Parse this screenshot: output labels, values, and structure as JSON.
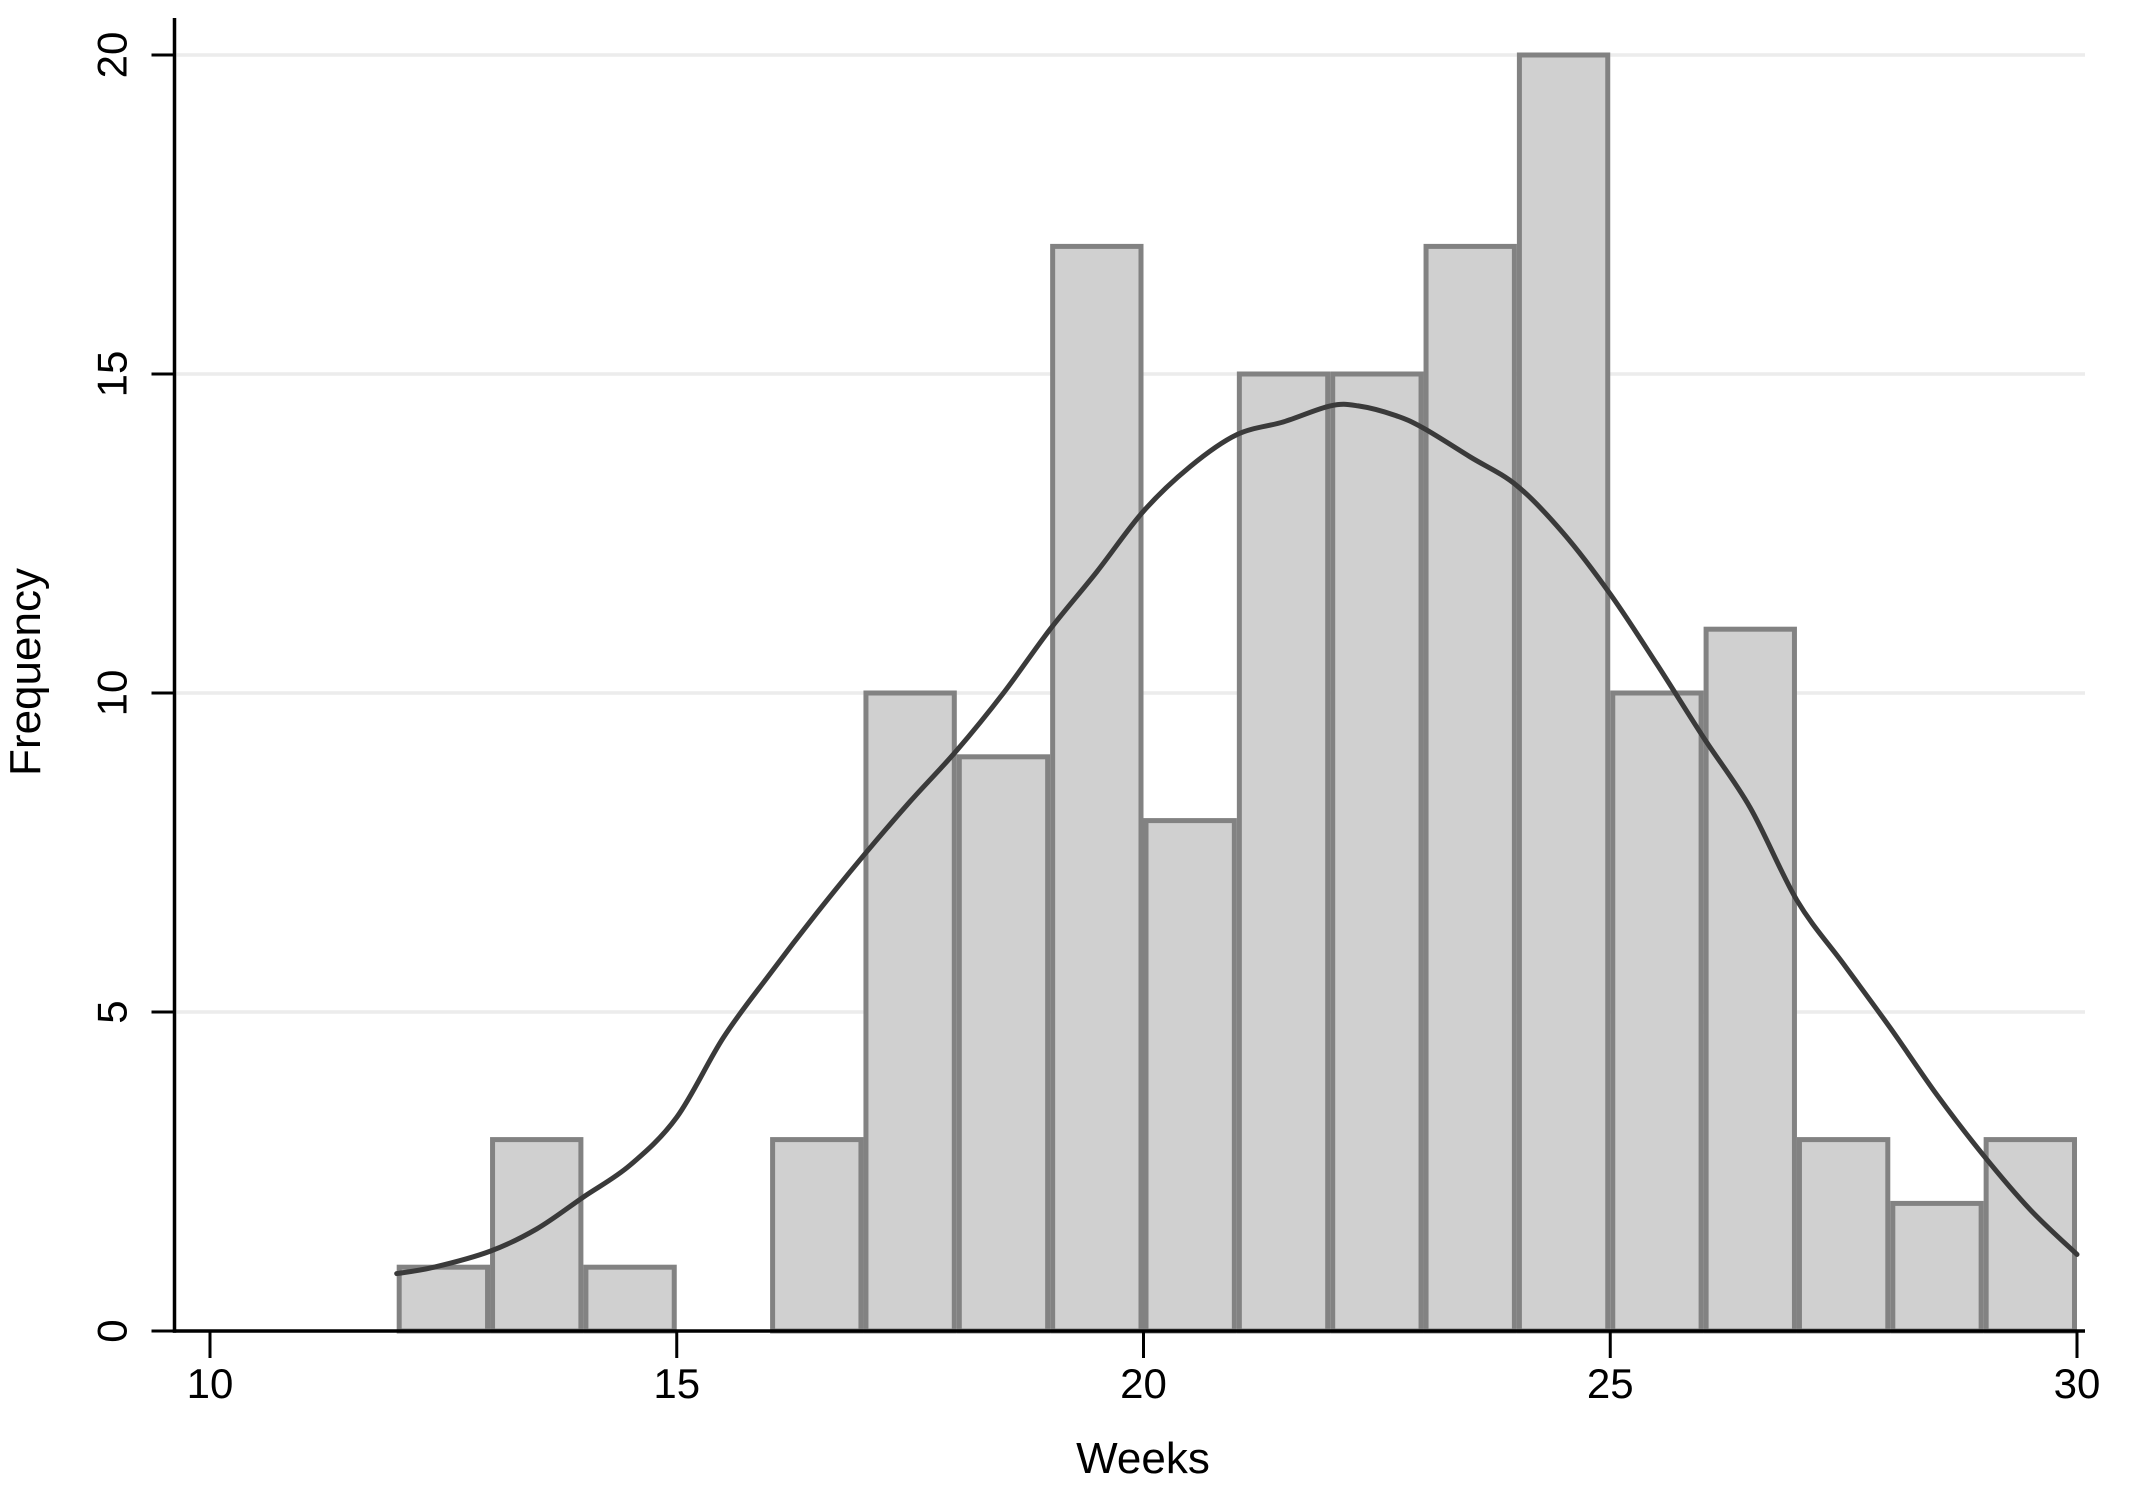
{
  "chart_data": {
    "type": "bar",
    "subtype": "histogram_with_density_overlay",
    "title": "",
    "xlabel": "Weeks",
    "ylabel": "Frequency",
    "xlim": [
      9.6,
      30.1
    ],
    "ylim": [
      0,
      20.6
    ],
    "xticks": [
      10,
      15,
      20,
      25,
      30
    ],
    "yticks": [
      0,
      5,
      10,
      15,
      20
    ],
    "grid": "horizontal gridlines at 5,10,15,20",
    "legend_position": "none",
    "bin_width": 1,
    "bins": [
      {
        "x0": 12,
        "x1": 13,
        "count": 1
      },
      {
        "x0": 13,
        "x1": 14,
        "count": 3
      },
      {
        "x0": 14,
        "x1": 15,
        "count": 1
      },
      {
        "x0": 15,
        "x1": 16,
        "count": 0
      },
      {
        "x0": 16,
        "x1": 17,
        "count": 3
      },
      {
        "x0": 17,
        "x1": 18,
        "count": 10
      },
      {
        "x0": 18,
        "x1": 19,
        "count": 9
      },
      {
        "x0": 19,
        "x1": 20,
        "count": 17
      },
      {
        "x0": 20,
        "x1": 21,
        "count": 8
      },
      {
        "x0": 21,
        "x1": 22,
        "count": 15
      },
      {
        "x0": 22,
        "x1": 23,
        "count": 15
      },
      {
        "x0": 23,
        "x1": 24,
        "count": 17
      },
      {
        "x0": 24,
        "x1": 25,
        "count": 20
      },
      {
        "x0": 25,
        "x1": 26,
        "count": 10
      },
      {
        "x0": 26,
        "x1": 27,
        "count": 11
      },
      {
        "x0": 27,
        "x1": 28,
        "count": 3
      },
      {
        "x0": 28,
        "x1": 29,
        "count": 2
      },
      {
        "x0": 29,
        "x1": 30,
        "count": 3
      }
    ],
    "density_curve": {
      "name": "density-fit-curve",
      "points": [
        [
          12,
          0.9
        ],
        [
          12.4,
          1.0
        ],
        [
          13,
          1.25
        ],
        [
          13.5,
          1.6
        ],
        [
          14,
          2.1
        ],
        [
          14.5,
          2.6
        ],
        [
          15,
          3.35
        ],
        [
          15.5,
          4.6
        ],
        [
          16,
          5.6
        ],
        [
          16.5,
          6.55
        ],
        [
          17,
          7.45
        ],
        [
          17.5,
          8.3
        ],
        [
          18,
          9.1
        ],
        [
          18.5,
          10.0
        ],
        [
          19,
          11.0
        ],
        [
          19.5,
          11.9
        ],
        [
          20,
          12.85
        ],
        [
          20.5,
          13.55
        ],
        [
          21,
          14.05
        ],
        [
          21.5,
          14.25
        ],
        [
          22,
          14.5
        ],
        [
          22.3,
          14.5
        ],
        [
          22.7,
          14.35
        ],
        [
          23,
          14.15
        ],
        [
          23.5,
          13.7
        ],
        [
          24,
          13.25
        ],
        [
          24.5,
          12.5
        ],
        [
          25,
          11.55
        ],
        [
          25.5,
          10.45
        ],
        [
          26,
          9.3
        ],
        [
          26.5,
          8.2
        ],
        [
          27,
          6.75
        ],
        [
          27.5,
          5.75
        ],
        [
          28,
          4.75
        ],
        [
          28.5,
          3.7
        ],
        [
          29,
          2.75
        ],
        [
          29.5,
          1.9
        ],
        [
          30,
          1.2
        ]
      ]
    },
    "colors": {
      "background": "#ffffff",
      "bar_fill": "#d0d0d0",
      "bar_border": "#828282",
      "curve": "#3a3a3a",
      "grid": "#ececec",
      "axis": "#000000",
      "text": "#000000"
    }
  }
}
